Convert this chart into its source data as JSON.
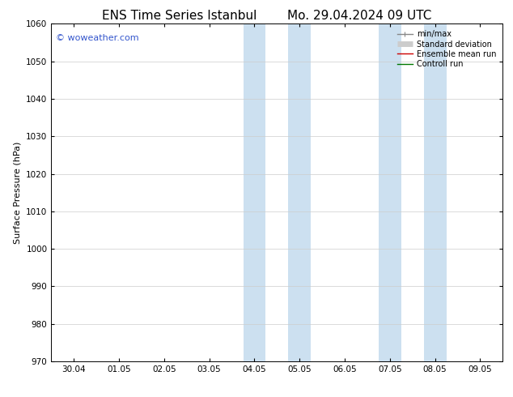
{
  "title_left": "ENS Time Series Istanbul",
  "title_right": "Mo. 29.04.2024 09 UTC",
  "ylabel": "Surface Pressure (hPa)",
  "ylim": [
    970,
    1060
  ],
  "yticks": [
    970,
    980,
    990,
    1000,
    1010,
    1020,
    1030,
    1040,
    1050,
    1060
  ],
  "xtick_labels": [
    "30.04",
    "01.05",
    "02.05",
    "03.05",
    "04.05",
    "05.05",
    "06.05",
    "07.05",
    "08.05",
    "09.05"
  ],
  "xtick_positions": [
    0,
    1,
    2,
    3,
    4,
    5,
    6,
    7,
    8,
    9
  ],
  "xlim": [
    -0.5,
    9.5
  ],
  "shaded_bands": [
    {
      "x_start": 3.75,
      "x_end": 4.25,
      "color": "#cce0f0"
    },
    {
      "x_start": 4.75,
      "x_end": 5.25,
      "color": "#cce0f0"
    },
    {
      "x_start": 6.75,
      "x_end": 7.25,
      "color": "#cce0f0"
    },
    {
      "x_start": 7.75,
      "x_end": 8.25,
      "color": "#cce0f0"
    }
  ],
  "watermark_text": "© woweather.com",
  "watermark_color": "#3355cc",
  "legend_items": [
    {
      "label": "min/max",
      "color": "#888888",
      "lw": 1.0
    },
    {
      "label": "Standard deviation",
      "color": "#cccccc",
      "lw": 5
    },
    {
      "label": "Ensemble mean run",
      "color": "#cc0000",
      "lw": 1.0
    },
    {
      "label": "Controll run",
      "color": "#007700",
      "lw": 1.0
    }
  ],
  "bg_color": "#ffffff",
  "grid_color": "#cccccc",
  "title_fontsize": 11,
  "ylabel_fontsize": 8,
  "tick_fontsize": 7.5,
  "legend_fontsize": 7,
  "watermark_fontsize": 8
}
